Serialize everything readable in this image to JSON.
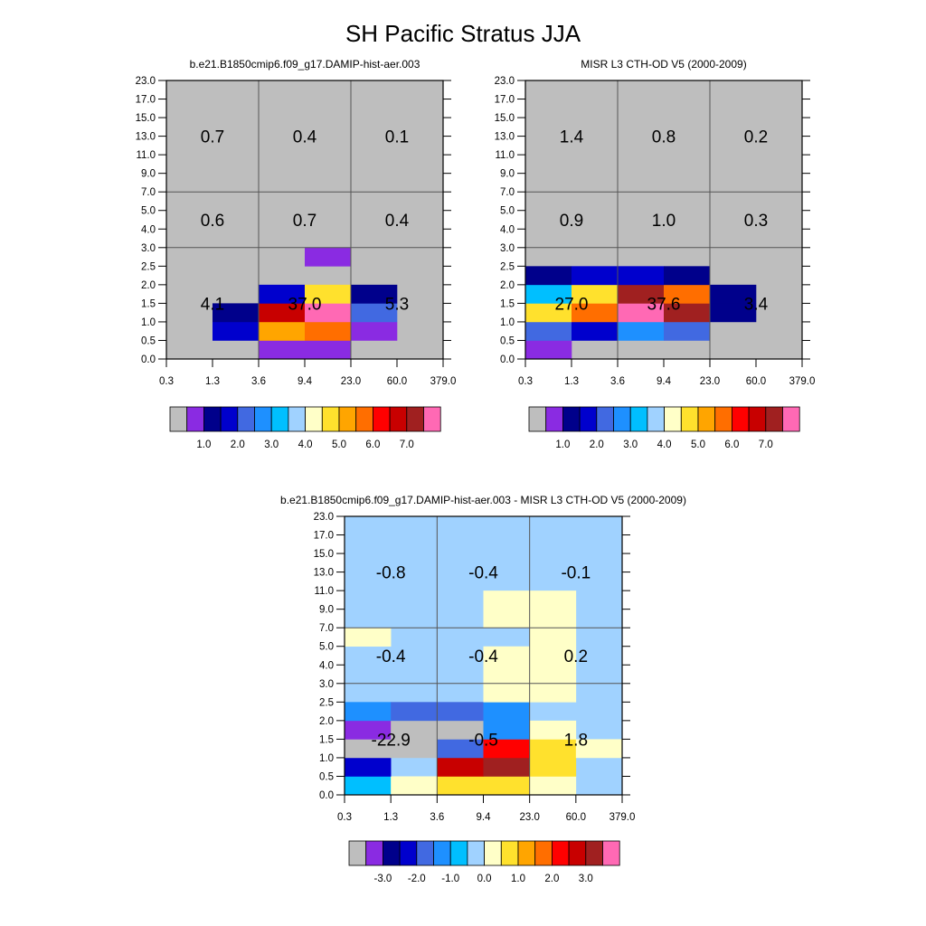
{
  "chart_data": {
    "type": "heatmap",
    "title": "SH Pacific Stratus JJA",
    "palette": [
      "#bebebe",
      "#8a2be2",
      "#00008b",
      "#0000cd",
      "#4169e1",
      "#1e90ff",
      "#00bfff",
      "#a0d2ff",
      "#ffffc8",
      "#ffe12d",
      "#ffa500",
      "#ff6e00",
      "#ff0000",
      "#c80000",
      "#a02020",
      "#ff69b4"
    ],
    "x_tick_labels": [
      "0.3",
      "1.3",
      "3.6",
      "9.4",
      "23.0",
      "60.0",
      "379.0"
    ],
    "y_tick_labels": [
      "0.0",
      "0.5",
      "1.0",
      "1.5",
      "2.0",
      "2.5",
      "3.0",
      "4.0",
      "5.0",
      "7.0",
      "9.0",
      "11.0",
      "13.0",
      "15.0",
      "17.0",
      "23.0"
    ],
    "xlabel": "",
    "ylabel": "",
    "grid": "coarse 3x3 dividers",
    "panels": [
      {
        "subtitle": "b.e21.B1850cmip6.f09_g17.DAMIP-hist-aer.003",
        "group_values": [
          [
            "0.7",
            "0.4",
            "0.1"
          ],
          [
            "0.6",
            "0.7",
            "0.4"
          ],
          [
            "4.1",
            "37.0",
            "5.3"
          ]
        ],
        "colorbar_labels": [
          "1.0",
          "2.0",
          "3.0",
          "4.0",
          "5.0",
          "6.0",
          "7.0"
        ],
        "default_level": 0,
        "cells": [
          [
            0,
            0,
            1,
            1,
            0,
            0
          ],
          [
            0,
            3,
            10,
            11,
            1,
            0
          ],
          [
            0,
            2,
            13,
            15,
            4,
            0
          ],
          [
            0,
            0,
            3,
            9,
            2,
            0
          ],
          [
            0,
            0,
            0,
            0,
            0,
            0
          ],
          [
            0,
            0,
            0,
            1,
            0,
            0
          ],
          [
            0,
            0,
            0,
            0,
            0,
            0
          ],
          [
            0,
            0,
            0,
            0,
            0,
            0
          ],
          [
            0,
            0,
            0,
            0,
            0,
            0
          ],
          [
            0,
            0,
            0,
            0,
            0,
            0
          ],
          [
            0,
            0,
            0,
            0,
            0,
            0
          ],
          [
            0,
            0,
            0,
            0,
            0,
            0
          ],
          [
            0,
            0,
            0,
            0,
            0,
            0
          ],
          [
            0,
            0,
            0,
            0,
            0,
            0
          ],
          [
            0,
            0,
            0,
            0,
            0,
            0
          ]
        ]
      },
      {
        "subtitle": "MISR L3 CTH-OD V5 (2000-2009)",
        "group_values": [
          [
            "1.4",
            "0.8",
            "0.2"
          ],
          [
            "0.9",
            "1.0",
            "0.3"
          ],
          [
            "27.0",
            "37.6",
            "3.4"
          ]
        ],
        "colorbar_labels": [
          "1.0",
          "2.0",
          "3.0",
          "4.0",
          "5.0",
          "6.0",
          "7.0"
        ],
        "default_level": 0,
        "cells": [
          [
            1,
            0,
            0,
            0,
            0,
            0
          ],
          [
            4,
            3,
            5,
            4,
            0,
            0
          ],
          [
            9,
            11,
            15,
            14,
            2,
            0
          ],
          [
            6,
            9,
            14,
            11,
            2,
            0
          ],
          [
            2,
            3,
            3,
            2,
            0,
            0
          ],
          [
            0,
            0,
            0,
            0,
            0,
            0
          ],
          [
            0,
            0,
            0,
            0,
            0,
            0
          ],
          [
            0,
            0,
            0,
            0,
            0,
            0
          ],
          [
            0,
            0,
            0,
            0,
            0,
            0
          ],
          [
            0,
            0,
            0,
            0,
            0,
            0
          ],
          [
            0,
            0,
            0,
            0,
            0,
            0
          ],
          [
            0,
            0,
            0,
            0,
            0,
            0
          ],
          [
            0,
            0,
            0,
            0,
            0,
            0
          ],
          [
            0,
            0,
            0,
            0,
            0,
            0
          ],
          [
            0,
            0,
            0,
            0,
            0,
            0
          ]
        ]
      },
      {
        "subtitle": "b.e21.B1850cmip6.f09_g17.DAMIP-hist-aer.003 - MISR L3 CTH-OD V5 (2000-2009)",
        "group_values": [
          [
            "-0.8",
            "-0.4",
            "-0.1"
          ],
          [
            "-0.4",
            "-0.4",
            "0.2"
          ],
          [
            "-22.9",
            "-0.5",
            "1.8"
          ]
        ],
        "colorbar_labels": [
          "-3.0",
          "-2.0",
          "-1.0",
          "0.0",
          "1.0",
          "2.0",
          "3.0"
        ],
        "default_level": 7,
        "cells": [
          [
            6,
            8,
            9,
            9,
            8,
            7
          ],
          [
            3,
            7,
            13,
            14,
            9,
            7
          ],
          [
            0,
            0,
            4,
            12,
            9,
            8
          ],
          [
            1,
            0,
            0,
            5,
            8,
            7
          ],
          [
            5,
            4,
            4,
            5,
            7,
            7
          ],
          [
            7,
            7,
            7,
            8,
            8,
            7
          ],
          [
            7,
            7,
            7,
            8,
            8,
            7
          ],
          [
            7,
            7,
            7,
            8,
            8,
            7
          ],
          [
            8,
            7,
            7,
            7,
            8,
            7
          ],
          [
            7,
            7,
            7,
            8,
            8,
            7
          ],
          [
            7,
            7,
            7,
            8,
            8,
            7
          ],
          [
            7,
            7,
            7,
            7,
            7,
            7
          ],
          [
            7,
            7,
            7,
            7,
            7,
            7
          ],
          [
            7,
            7,
            7,
            7,
            7,
            7
          ],
          [
            7,
            7,
            7,
            7,
            7,
            7
          ]
        ]
      }
    ]
  }
}
